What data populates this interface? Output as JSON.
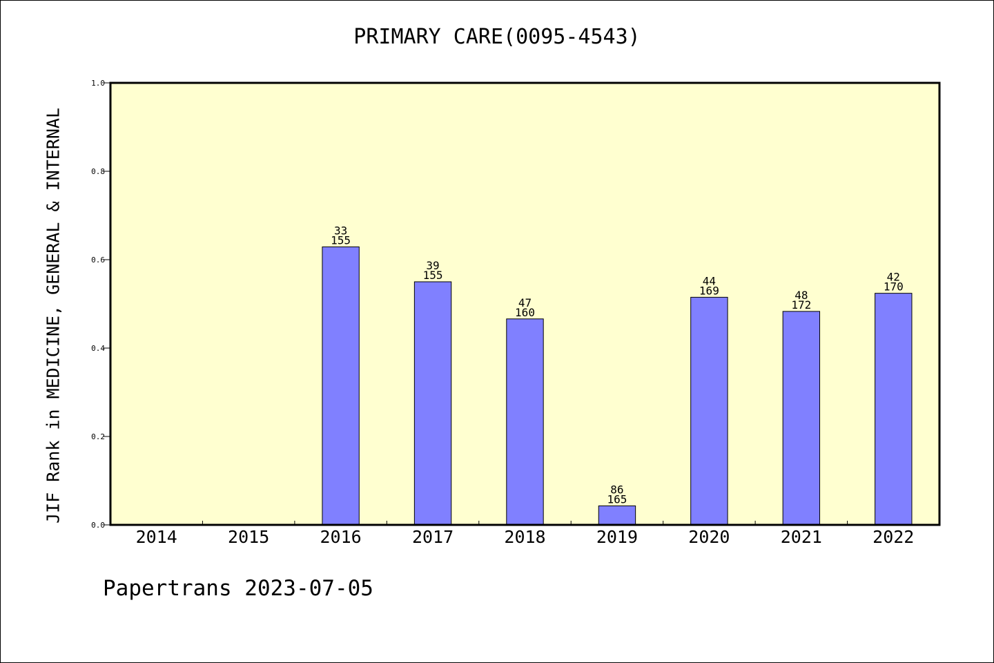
{
  "chart_data": {
    "type": "bar",
    "title": "PRIMARY CARE(0095-4543)",
    "xlabel": "",
    "ylabel": "JIF Rank in MEDICINE, GENERAL & INTERNAL",
    "categories": [
      "2014",
      "2015",
      "2016",
      "2017",
      "2018",
      "2019",
      "2020",
      "2021",
      "2022"
    ],
    "values": [
      null,
      null,
      0.629,
      0.55,
      0.466,
      0.043,
      0.515,
      0.483,
      0.524
    ],
    "rank": [
      null,
      null,
      "33",
      "39",
      "47",
      "86",
      "44",
      "48",
      "42"
    ],
    "total": [
      null,
      null,
      "155",
      "155",
      "160",
      "165",
      "169",
      "172",
      "170"
    ],
    "ylim": [
      0,
      1
    ],
    "yticks": [
      "0.0",
      "0.2",
      "0.4",
      "0.6",
      "0.8",
      "1.0"
    ],
    "grid": false,
    "colors": {
      "plot_background": "#ffffd0",
      "bar_fill": "#8080ff",
      "bar_stroke": "#000000"
    }
  },
  "footer": "Papertrans 2023-07-05"
}
